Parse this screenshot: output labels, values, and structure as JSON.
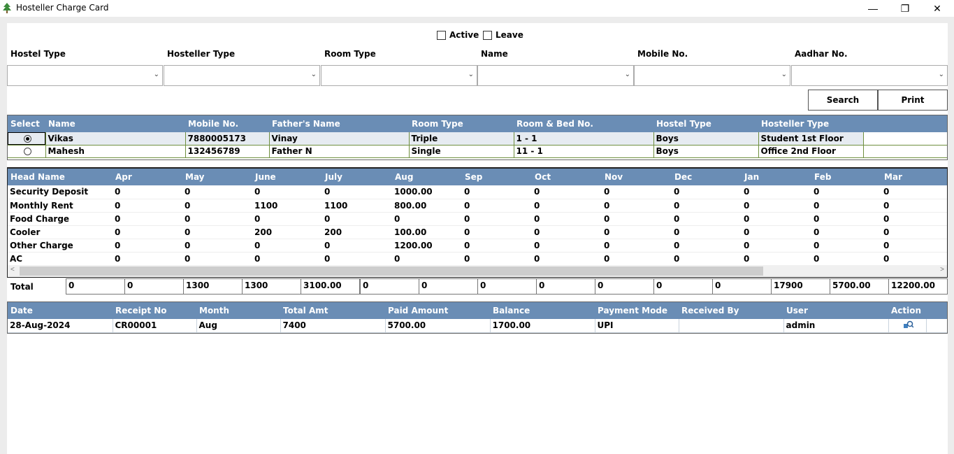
{
  "window": {
    "title": "Hosteller Charge Card",
    "controls": [
      "—",
      "❐",
      "✕"
    ]
  },
  "filters": {
    "active_label": "Active",
    "leave_label": "Leave",
    "fields": [
      {
        "label": "Hostel Type",
        "value": ""
      },
      {
        "label": "Hosteller Type",
        "value": ""
      },
      {
        "label": "Room Type",
        "value": ""
      },
      {
        "label": "Name",
        "value": ""
      },
      {
        "label": "Mobile No.",
        "value": ""
      },
      {
        "label": "Aadhar No.",
        "value": ""
      }
    ],
    "search_label": "Search",
    "print_label": "Print"
  },
  "hostellers": {
    "columns": [
      "Select",
      "Name",
      "Mobile No.",
      "Father's Name",
      "Room Type",
      "Room & Bed No.",
      "Hostel Type",
      "Hosteller Type"
    ],
    "rows": [
      {
        "selected": true,
        "name": "Vikas",
        "mobile": "7880005173",
        "father": "Vinay",
        "room_type": "Triple",
        "room_bed": "1 - 1",
        "hostel_type": "Boys",
        "hosteller_type": "Student 1st Floor"
      },
      {
        "selected": false,
        "name": "Mahesh",
        "mobile": "132456789",
        "father": "Father N",
        "room_type": "Single",
        "room_bed": "11 - 1",
        "hostel_type": "Boys",
        "hosteller_type": "Office 2nd Floor"
      }
    ]
  },
  "charges": {
    "columns": [
      "Head Name",
      "Apr",
      "May",
      "June",
      "July",
      "Aug",
      "Sep",
      "Oct",
      "Nov",
      "Dec",
      "Jan",
      "Feb",
      "Mar"
    ],
    "rows": [
      [
        "Security Deposit",
        "0",
        "0",
        "0",
        "0",
        "1000.00",
        "0",
        "0",
        "0",
        "0",
        "0",
        "0",
        "0"
      ],
      [
        "Monthly Rent",
        "0",
        "0",
        "1100",
        "1100",
        "800.00",
        "0",
        "0",
        "0",
        "0",
        "0",
        "0",
        "0"
      ],
      [
        "Food Charge",
        "0",
        "0",
        "0",
        "0",
        "0",
        "0",
        "0",
        "0",
        "0",
        "0",
        "0",
        "0"
      ],
      [
        "Cooler",
        "0",
        "0",
        "200",
        "200",
        "100.00",
        "0",
        "0",
        "0",
        "0",
        "0",
        "0",
        "0"
      ],
      [
        "Other Charge",
        "0",
        "0",
        "0",
        "0",
        "1200.00",
        "0",
        "0",
        "0",
        "0",
        "0",
        "0",
        "0"
      ],
      [
        "AC",
        "0",
        "0",
        "0",
        "0",
        "0",
        "0",
        "0",
        "0",
        "0",
        "0",
        "0",
        "0"
      ]
    ]
  },
  "totals": {
    "label": "Total",
    "values": [
      "0",
      "0",
      "1300",
      "1300",
      "3100.00",
      "0",
      "0",
      "0",
      "0",
      "0",
      "0",
      "0",
      "17900",
      "5700.00",
      "12200.00"
    ]
  },
  "receipts": {
    "columns": [
      "Date",
      "Receipt No",
      "Month",
      "Total Amt",
      "Paid Amount",
      "Balance",
      "Payment Mode",
      "Received By",
      "User",
      "Action"
    ],
    "rows": [
      {
        "date": "28-Aug-2024",
        "receipt": "CR00001",
        "month": "Aug",
        "total": "7400",
        "paid": "5700.00",
        "balance": "1700.00",
        "mode": "UPI",
        "received_by": "",
        "user": "admin",
        "action_icon": "view-icon"
      }
    ]
  }
}
